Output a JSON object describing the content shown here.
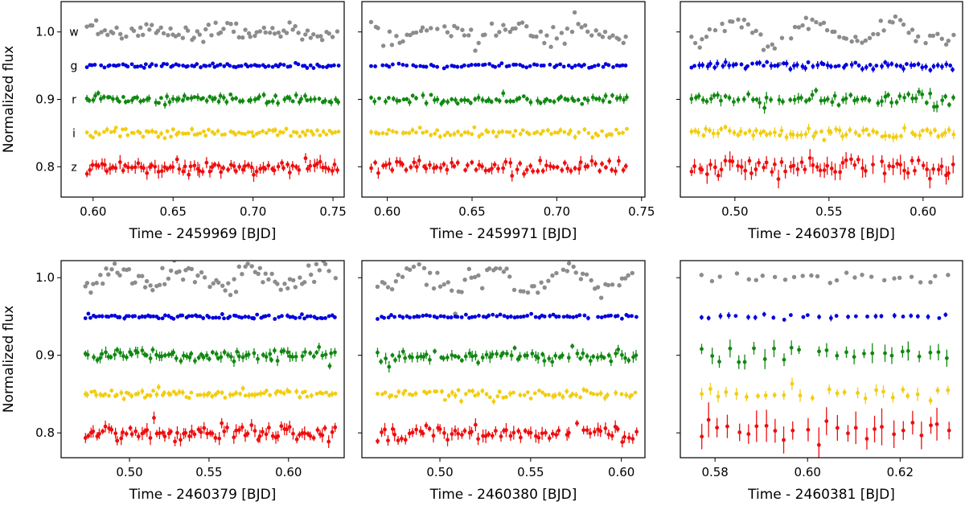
{
  "figure": {
    "ylabel": "Normalized flux",
    "band_colors": {
      "w": "#8c8c8c",
      "g": "#0000dd",
      "r": "#118811",
      "i": "#f2cd12",
      "z": "#ee0e0e"
    },
    "band_labels": [
      "w",
      "g",
      "r",
      "i",
      "z"
    ]
  },
  "chart_data": [
    {
      "type": "scatter",
      "xlabel": "Time - 2459969 [BJD]",
      "ylabel": "Normalized flux",
      "xlim": [
        0.58,
        0.757
      ],
      "ylim": [
        0.755,
        1.045
      ],
      "xticks": [
        "0.60",
        "0.65",
        "0.70",
        "0.75"
      ],
      "yticks": [
        "1.0",
        "0.9",
        "0.8"
      ],
      "show_ylabel": true,
      "show_band_labels": true,
      "x_range": [
        0.595,
        0.754
      ],
      "npts": 85,
      "series": [
        {
          "name": "w",
          "baseline": 1.0,
          "scatter": 0.006,
          "err": 0.0,
          "dip": 0.006
        },
        {
          "name": "g",
          "baseline": 0.95,
          "scatter": 0.0015,
          "err": 0.002,
          "dip": 0.0
        },
        {
          "name": "r",
          "baseline": 0.9,
          "scatter": 0.004,
          "err": 0.004,
          "dip": 0.0
        },
        {
          "name": "i",
          "baseline": 0.85,
          "scatter": 0.003,
          "err": 0.003,
          "dip": 0.0
        },
        {
          "name": "z",
          "baseline": 0.8,
          "scatter": 0.006,
          "err": 0.007,
          "dip": 0.0
        }
      ]
    },
    {
      "type": "scatter",
      "xlabel": "Time - 2459971 [BJD]",
      "ylabel": "",
      "xlim": [
        0.585,
        0.752
      ],
      "ylim": [
        0.755,
        1.045
      ],
      "xticks": [
        "0.60",
        "0.65",
        "0.70",
        "0.75"
      ],
      "yticks": [],
      "show_ylabel": false,
      "show_band_labels": false,
      "x_range": [
        0.59,
        0.742
      ],
      "npts": 75,
      "series": [
        {
          "name": "w",
          "baseline": 1.0,
          "scatter": 0.007,
          "err": 0.0,
          "dip": 0.01
        },
        {
          "name": "g",
          "baseline": 0.95,
          "scatter": 0.0015,
          "err": 0.002,
          "dip": 0.0
        },
        {
          "name": "r",
          "baseline": 0.9,
          "scatter": 0.004,
          "err": 0.004,
          "dip": 0.0
        },
        {
          "name": "i",
          "baseline": 0.85,
          "scatter": 0.003,
          "err": 0.003,
          "dip": 0.0
        },
        {
          "name": "z",
          "baseline": 0.8,
          "scatter": 0.005,
          "err": 0.006,
          "dip": 0.0
        }
      ]
    },
    {
      "type": "scatter",
      "xlabel": "Time - 2460378 [BJD]",
      "ylabel": "",
      "xlim": [
        0.471,
        0.621
      ],
      "ylim": [
        0.755,
        1.045
      ],
      "xticks": [
        "0.50",
        "0.55",
        "0.60"
      ],
      "yticks": [],
      "show_ylabel": false,
      "show_band_labels": false,
      "x_range": [
        0.476,
        0.617
      ],
      "npts": 70,
      "series": [
        {
          "name": "w",
          "baseline": 1.0,
          "scatter": 0.006,
          "err": 0.0,
          "dip": 0.02
        },
        {
          "name": "g",
          "baseline": 0.95,
          "scatter": 0.003,
          "err": 0.004,
          "dip": 0.0
        },
        {
          "name": "r",
          "baseline": 0.9,
          "scatter": 0.005,
          "err": 0.006,
          "dip": 0.0
        },
        {
          "name": "i",
          "baseline": 0.85,
          "scatter": 0.004,
          "err": 0.005,
          "dip": 0.0
        },
        {
          "name": "z",
          "baseline": 0.8,
          "scatter": 0.008,
          "err": 0.01,
          "dip": 0.0
        }
      ]
    },
    {
      "type": "scatter",
      "xlabel": "Time - 2460379 [BJD]",
      "ylabel": "Normalized flux",
      "xlim": [
        0.457,
        0.635
      ],
      "ylim": [
        0.768,
        1.022
      ],
      "xticks": [
        "0.50",
        "0.55",
        "0.60"
      ],
      "yticks": [
        "1.0",
        "0.9",
        "0.8"
      ],
      "show_ylabel": true,
      "show_band_labels": false,
      "x_range": [
        0.471,
        0.63
      ],
      "npts": 85,
      "series": [
        {
          "name": "w",
          "baseline": 1.0,
          "scatter": 0.007,
          "err": 0.0,
          "dip": 0.015
        },
        {
          "name": "g",
          "baseline": 0.95,
          "scatter": 0.0015,
          "err": 0.002,
          "dip": 0.0
        },
        {
          "name": "r",
          "baseline": 0.9,
          "scatter": 0.004,
          "err": 0.005,
          "dip": 0.0
        },
        {
          "name": "i",
          "baseline": 0.85,
          "scatter": 0.003,
          "err": 0.003,
          "dip": 0.0
        },
        {
          "name": "z",
          "baseline": 0.8,
          "scatter": 0.005,
          "err": 0.006,
          "dip": 0.0
        }
      ]
    },
    {
      "type": "scatter",
      "xlabel": "Time - 2460380 [BJD]",
      "ylabel": "",
      "xlim": [
        0.457,
        0.613
      ],
      "ylim": [
        0.768,
        1.022
      ],
      "xticks": [
        "0.50",
        "0.55",
        "0.60"
      ],
      "yticks": [],
      "show_ylabel": false,
      "show_band_labels": false,
      "x_range": [
        0.465,
        0.609
      ],
      "npts": 75,
      "series": [
        {
          "name": "w",
          "baseline": 1.0,
          "scatter": 0.007,
          "err": 0.0,
          "dip": 0.02
        },
        {
          "name": "g",
          "baseline": 0.95,
          "scatter": 0.0012,
          "err": 0.002,
          "dip": 0.0
        },
        {
          "name": "r",
          "baseline": 0.9,
          "scatter": 0.004,
          "err": 0.005,
          "dip": 0.0
        },
        {
          "name": "i",
          "baseline": 0.85,
          "scatter": 0.003,
          "err": 0.003,
          "dip": 0.0
        },
        {
          "name": "z",
          "baseline": 0.8,
          "scatter": 0.005,
          "err": 0.006,
          "dip": 0.0
        }
      ]
    },
    {
      "type": "scatter",
      "xlabel": "Time - 2460381 [BJD]",
      "ylabel": "",
      "xlim": [
        0.5725,
        0.6335
      ],
      "ylim": [
        0.768,
        1.022
      ],
      "xticks": [
        "0.58",
        "0.60",
        "0.62"
      ],
      "yticks": [],
      "show_ylabel": false,
      "show_band_labels": false,
      "x_range": [
        0.576,
        0.631
      ],
      "npts": 28,
      "series": [
        {
          "name": "w",
          "baseline": 1.0,
          "scatter": 0.004,
          "err": 0.0,
          "dip": 0.0
        },
        {
          "name": "g",
          "baseline": 0.95,
          "scatter": 0.0015,
          "err": 0.003,
          "dip": 0.0
        },
        {
          "name": "r",
          "baseline": 0.9,
          "scatter": 0.005,
          "err": 0.009,
          "dip": 0.0
        },
        {
          "name": "i",
          "baseline": 0.85,
          "scatter": 0.004,
          "err": 0.006,
          "dip": 0.0
        },
        {
          "name": "z",
          "baseline": 0.8,
          "scatter": 0.008,
          "err": 0.016,
          "dip": 0.0
        }
      ]
    }
  ]
}
